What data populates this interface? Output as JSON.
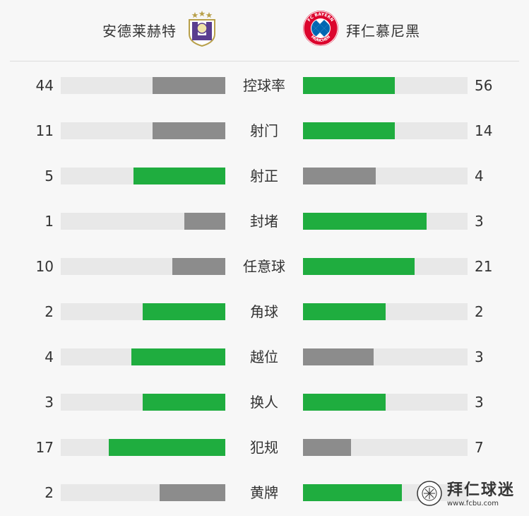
{
  "header": {
    "home_team": "安德莱赫特",
    "away_team": "拜仁慕尼黑",
    "home_logo_icon": "anderlecht-crest-icon",
    "away_logo_icon": "fc-bayern-munchen-crest-icon",
    "away_logo_text_top": "FC BAYERN",
    "away_logo_text_bottom": "MÜNCHEN"
  },
  "colors": {
    "better_bar": "#1fad3f",
    "worse_bar": "#8c8c8c",
    "track": "#e8e8e8"
  },
  "stats": [
    {
      "label": "控球率",
      "home": "44",
      "away": "56",
      "home_fill": 0.44,
      "away_fill": 0.56,
      "home_state": "lose",
      "away_state": "win"
    },
    {
      "label": "射门",
      "home": "11",
      "away": "14",
      "home_fill": 0.44,
      "away_fill": 0.56,
      "home_state": "lose",
      "away_state": "win"
    },
    {
      "label": "射正",
      "home": "5",
      "away": "4",
      "home_fill": 0.56,
      "away_fill": 0.44,
      "home_state": "win",
      "away_state": "lose"
    },
    {
      "label": "封堵",
      "home": "1",
      "away": "3",
      "home_fill": 0.25,
      "away_fill": 0.75,
      "home_state": "lose",
      "away_state": "win"
    },
    {
      "label": "任意球",
      "home": "10",
      "away": "21",
      "home_fill": 0.32,
      "away_fill": 0.68,
      "home_state": "lose",
      "away_state": "win"
    },
    {
      "label": "角球",
      "home": "2",
      "away": "2",
      "home_fill": 0.5,
      "away_fill": 0.5,
      "home_state": "win",
      "away_state": "win"
    },
    {
      "label": "越位",
      "home": "4",
      "away": "3",
      "home_fill": 0.57,
      "away_fill": 0.43,
      "home_state": "win",
      "away_state": "lose"
    },
    {
      "label": "换人",
      "home": "3",
      "away": "3",
      "home_fill": 0.5,
      "away_fill": 0.5,
      "home_state": "win",
      "away_state": "win"
    },
    {
      "label": "犯规",
      "home": "17",
      "away": "7",
      "home_fill": 0.71,
      "away_fill": 0.29,
      "home_state": "win",
      "away_state": "lose"
    },
    {
      "label": "黄牌",
      "home": "2",
      "away": "",
      "home_fill": 0.4,
      "away_fill": 0.6,
      "home_state": "lose",
      "away_state": "win"
    }
  ],
  "watermark": {
    "text": "拜仁球迷",
    "url": "www.fcbu.com",
    "icon": "fcbu-badge-icon"
  }
}
